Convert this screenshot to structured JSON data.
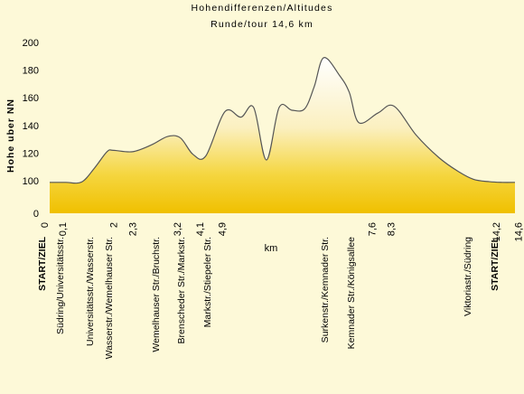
{
  "chart_data": {
    "type": "area",
    "title": "Hohendifferenzen/Altitudes",
    "subtitle": "Runde/tour 14,6 km",
    "xlabel": "km",
    "ylabel": "Hohe uber NN",
    "ylim": [
      0,
      200
    ],
    "y_ticks": [
      0,
      100,
      120,
      140,
      160,
      180,
      200
    ],
    "x_ticks": [
      "0",
      "0,1",
      "2",
      "2,3",
      "3,2",
      "4,1",
      "4,9",
      "7,6",
      "8,3",
      "14,2",
      "14,6"
    ],
    "grid": false,
    "colors": {
      "fill_top": "#ffffff",
      "fill_bottom": "#f2c200",
      "background": "#fdf9d8"
    },
    "series": [
      {
        "x": [
          0,
          0.5,
          1,
          1.4,
          1.8,
          2.0,
          2.6,
          3.2,
          3.7,
          4.1,
          4.5,
          4.9,
          5.5,
          6.0,
          6.4,
          6.8,
          7.2,
          7.6,
          8.0,
          8.3,
          8.6,
          9.1,
          9.4,
          9.7,
          10.3,
          10.8,
          11.5,
          12.2,
          12.8,
          13.3,
          13.8,
          14.2,
          14.6
        ],
        "y": [
          95,
          95,
          96,
          109,
          121,
          122,
          121,
          126,
          132,
          131,
          119,
          118,
          150,
          146,
          153,
          115,
          153,
          151,
          152,
          168,
          189,
          176,
          164,
          142,
          149,
          154,
          133,
          117,
          107,
          101,
          97,
          95,
          95
        ]
      }
    ],
    "places": [
      {
        "label": "START/ZIEL",
        "bold": true
      },
      {
        "label": "Südring/Universitätsstr.",
        "bold": false
      },
      {
        "label": "Universitätsstr./Wasserstr.",
        "bold": false
      },
      {
        "label": "Wasserstr./Wemelhauser Str.",
        "bold": false
      },
      {
        "label": "Wemelhauser Str./Bruchstr.",
        "bold": false
      },
      {
        "label": "Brenscheder Str./Markstr.",
        "bold": false
      },
      {
        "label": "Markstr./Stiepeler Str.",
        "bold": false
      },
      {
        "label": "Surkenstr./Kemnader Str.",
        "bold": false
      },
      {
        "label": "Kemnader Str./Königsallee",
        "bold": false
      },
      {
        "label": "Viktoriastr./Südring",
        "bold": false
      },
      {
        "label": "START/ZIEL",
        "bold": true
      }
    ]
  }
}
